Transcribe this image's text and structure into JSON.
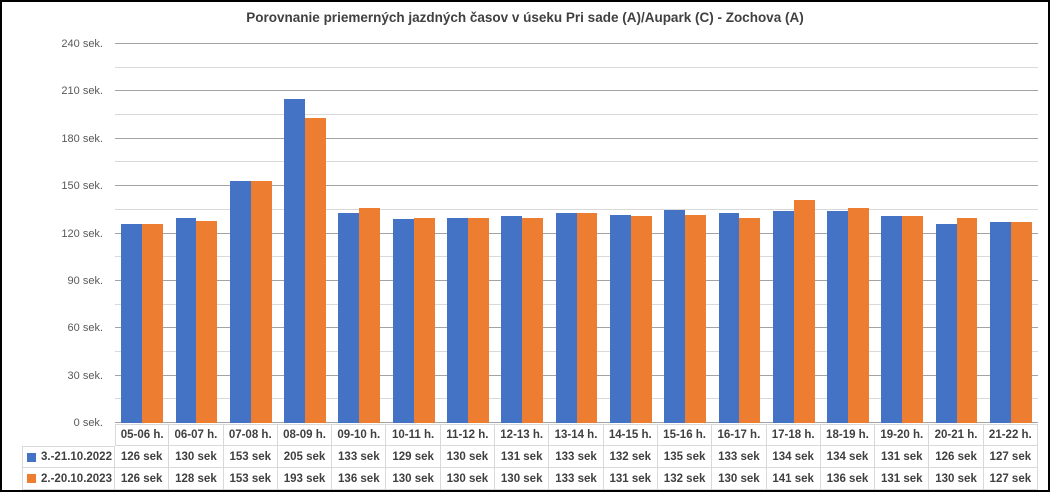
{
  "chart_data": {
    "type": "bar",
    "title": "Porovnanie priemerných jazdných časov v úseku Pri sade (A)/Aupark (C) - Zochova (A)",
    "categories": [
      "05-06 h.",
      "06-07 h.",
      "07-08 h.",
      "08-09 h.",
      "09-10 h.",
      "10-11 h.",
      "11-12 h.",
      "12-13 h.",
      "13-14 h.",
      "14-15 h.",
      "15-16 h.",
      "16-17 h.",
      "17-18 h.",
      "18-19 h.",
      "19-20 h.",
      "20-21 h.",
      "21-22 h."
    ],
    "series": [
      {
        "name": "3.-21.10.2022",
        "color": "#4472C4",
        "values": [
          126,
          130,
          153,
          205,
          133,
          129,
          130,
          131,
          133,
          132,
          135,
          133,
          134,
          134,
          131,
          126,
          127
        ]
      },
      {
        "name": "2.-20.10.2023",
        "color": "#ED7D31",
        "values": [
          126,
          128,
          153,
          193,
          136,
          130,
          130,
          130,
          133,
          131,
          132,
          130,
          141,
          136,
          131,
          130,
          127
        ]
      }
    ],
    "ylim": [
      0,
      240
    ],
    "y_major_step": 30,
    "y_minor_step": 15,
    "y_tick_labels": [
      "0 sek.",
      "30 sek.",
      "60 sek.",
      "90 sek.",
      "120 sek.",
      "150 sek.",
      "180 sek.",
      "210 sek.",
      "240 sek."
    ],
    "cell_unit": "sek",
    "grid": true,
    "legend_position": "table-left",
    "xlabel": "",
    "ylabel": ""
  },
  "styles": {
    "text_dark": "#404040",
    "text_axis": "#595959",
    "grid_major": "#A3A3A3",
    "grid_minor": "#D9D9D9",
    "table_border": "#D9D9D9",
    "frame_border": "#000000",
    "background": "#FFFFFF"
  }
}
